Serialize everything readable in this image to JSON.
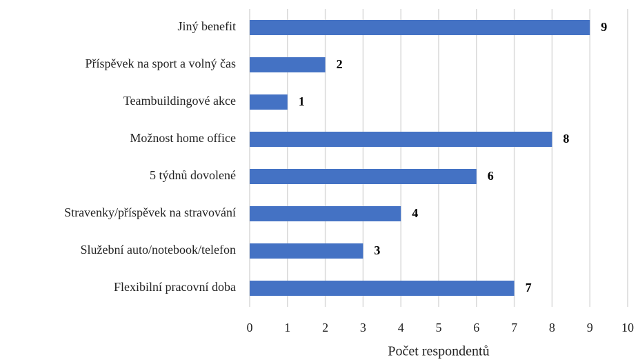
{
  "chart_data": {
    "type": "barh",
    "x_label": "Počet respondentů",
    "categories": [
      "Jiný benefit",
      "Příspěvek na sport a volný čas",
      "Teambuildingové akce",
      "Možnost home office",
      "5 týdnů dovolené",
      "Stravenky/příspěvek na stravování",
      "Služební auto/notebook/telefon",
      "Flexibilní pracovní doba"
    ],
    "values": [
      9,
      2,
      1,
      8,
      6,
      4,
      3,
      7
    ],
    "color": "#4472c4",
    "xlim": [
      0,
      10
    ],
    "xticks": [
      0,
      1,
      2,
      3,
      4,
      5,
      6,
      7,
      8,
      9,
      10
    ],
    "grid": true
  }
}
